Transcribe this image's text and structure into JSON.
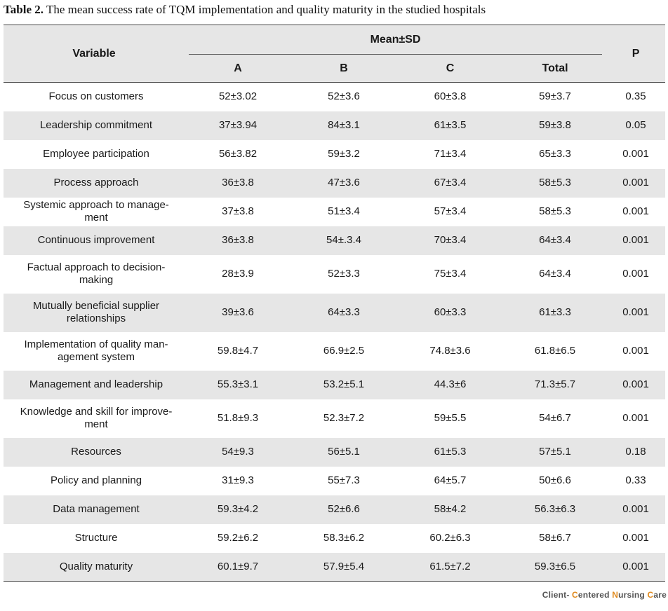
{
  "caption": {
    "label": "Table 2.",
    "text": " The mean success rate of TQM implementation and quality maturity in the studied hospitals"
  },
  "header": {
    "variable": "Variable",
    "mean_sd": "Mean±SD",
    "groups": [
      "A",
      "B",
      "C",
      "Total"
    ],
    "p": "P"
  },
  "rows": [
    {
      "variable": "Focus on customers",
      "a": "52±3.02",
      "b": "52±3.6",
      "c": "60±3.8",
      "total": "59±3.7",
      "p": "0.35"
    },
    {
      "variable": "Leadership commitment",
      "a": "37±3.94",
      "b": "84±3.1",
      "c": "61±3.5",
      "total": "59±3.8",
      "p": "0.05"
    },
    {
      "variable": "Employee participation",
      "a": "56±3.82",
      "b": "59±3.2",
      "c": "71±3.4",
      "total": "65±3.3",
      "p": "0.001"
    },
    {
      "variable": "Process approach",
      "a": "36±3.8",
      "b": "47±3.6",
      "c": "67±3.4",
      "total": "58±5.3",
      "p": "0.001"
    },
    {
      "variable": "Systemic approach to manage-\nment",
      "a": "37±3.8",
      "b": "51±3.4",
      "c": "57±3.4",
      "total": "58±5.3",
      "p": "0.001"
    },
    {
      "variable": "Continuous improvement",
      "a": "36±3.8",
      "b": "54±.3.4",
      "c": "70±3.4",
      "total": "64±3.4",
      "p": "0.001"
    },
    {
      "variable": "Factual approach to decision-\nmaking",
      "a": "28±3.9",
      "b": "52±3.3",
      "c": "75±3.4",
      "total": "64±3.4",
      "p": "0.001"
    },
    {
      "variable": "Mutually beneficial supplier\nrelationships",
      "a": "39±3.6",
      "b": "64±3.3",
      "c": "60±3.3",
      "total": "61±3.3",
      "p": "0.001"
    },
    {
      "variable": "Implementation of quality man-\nagement system",
      "a": "59.8±4.7",
      "b": "66.9±2.5",
      "c": "74.8±3.6",
      "total": "61.8±6.5",
      "p": "0.001"
    },
    {
      "variable": "Management and leadership",
      "a": "55.3±3.1",
      "b": "53.2±5.1",
      "c": "44.3±6",
      "total": "71.3±5.7",
      "p": "0.001"
    },
    {
      "variable": "Knowledge and skill for improve-\nment",
      "a": "51.8±9.3",
      "b": "52.3±7.2",
      "c": "59±5.5",
      "total": "54±6.7",
      "p": "0.001"
    },
    {
      "variable": "Resources",
      "a": "54±9.3",
      "b": "56±5.1",
      "c": "61±5.3",
      "total": "57±5.1",
      "p": "0.18"
    },
    {
      "variable": "Policy and planning",
      "a": "31±9.3",
      "b": "55±7.3",
      "c": "64±5.7",
      "total": "50±6.6",
      "p": "0.33"
    },
    {
      "variable": "Data management",
      "a": "59.3±4.2",
      "b": "52±6.6",
      "c": "58±4.2",
      "total": "56.3±6.3",
      "p": "0.001"
    },
    {
      "variable": "Structure",
      "a": "59.2±6.2",
      "b": "58.3±6.2",
      "c": "60.2±6.3",
      "total": "58±6.7",
      "p": "0.001"
    },
    {
      "variable": "Quality maturity",
      "a": "60.1±9.7",
      "b": "57.9±5.4",
      "c": "61.5±7.2",
      "total": "59.3±6.5",
      "p": "0.001"
    }
  ],
  "footer": {
    "part1": "Client- ",
    "part2": "C",
    "part3": "entered ",
    "part4": "N",
    "part5": "ursing ",
    "part6": "C",
    "part7": "are"
  }
}
